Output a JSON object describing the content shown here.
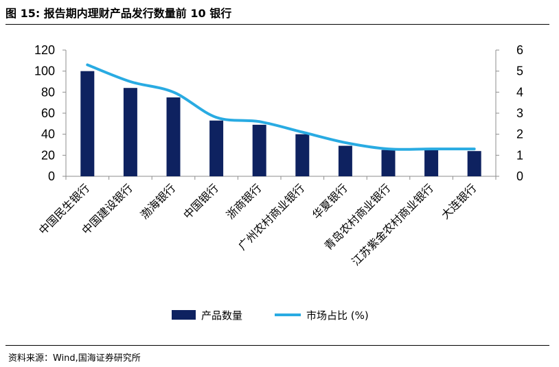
{
  "figure": {
    "title": "图 15:  报告期内理财产品发行数量前 10 银行",
    "source": "资料来源：Wind,国海证券研究所"
  },
  "colors": {
    "bar": "#0e2260",
    "line": "#29abe2",
    "axis": "#8c8c8c"
  },
  "chart_data": {
    "type": "bar",
    "categories": [
      "中国民生银行",
      "中国建设银行",
      "渤海银行",
      "中国银行",
      "浙商银行",
      "广州农村商业银行",
      "华夏银行",
      "青岛农村商业银行",
      "江苏紫金农村商业银行",
      "大连银行"
    ],
    "series": [
      {
        "name": "产品数量",
        "type": "bar",
        "axis": "left",
        "values": [
          100,
          84,
          75,
          53,
          49,
          40,
          29,
          25,
          25,
          24
        ]
      },
      {
        "name": "市场占比 (%)",
        "type": "line",
        "axis": "right",
        "values": [
          5.3,
          4.5,
          4.0,
          2.8,
          2.6,
          2.1,
          1.6,
          1.3,
          1.3,
          1.3
        ]
      }
    ],
    "y_left": {
      "min": 0,
      "max": 120,
      "ticks": [
        "0",
        "20",
        "40",
        "60",
        "80",
        "100",
        "120"
      ]
    },
    "y_right": {
      "min": 0,
      "max": 6,
      "ticks": [
        "0",
        "1",
        "2",
        "3",
        "4",
        "5",
        "6"
      ]
    },
    "grid": false,
    "legend_position": "bottom"
  }
}
